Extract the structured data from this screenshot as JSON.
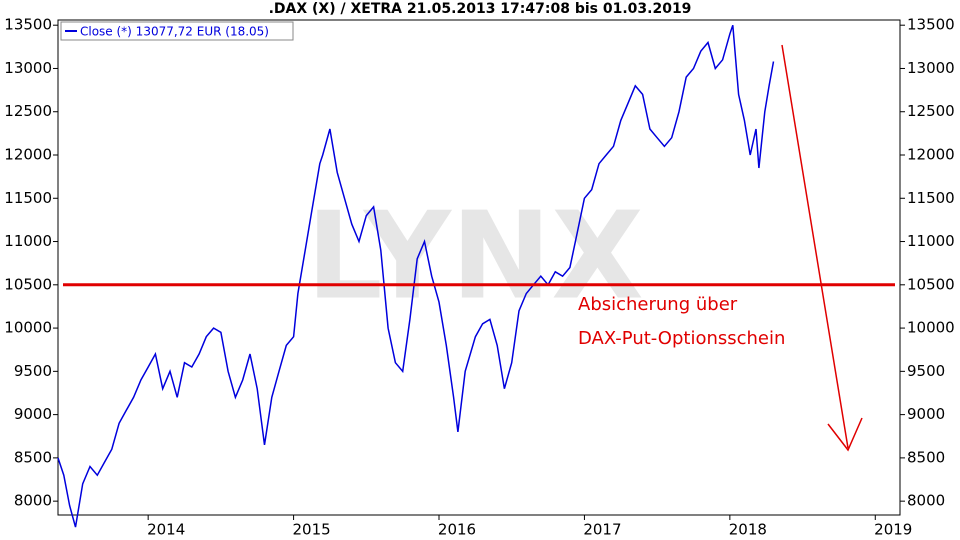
{
  "chart_data": {
    "type": "line",
    "title": ".DAX (X) / XETRA 21.05.2013 17:47:08 bis 01.03.2019",
    "watermark": "LYNX",
    "annotation": {
      "lines": [
        "Absicherung über",
        "DAX-Put-Optionsschein"
      ],
      "color": "#e00000"
    },
    "hline": {
      "value": 10500,
      "color": "#e00000"
    },
    "x": [
      2013.38,
      2013.42,
      2013.46,
      2013.5,
      2013.55,
      2013.6,
      2013.65,
      2013.7,
      2013.75,
      2013.8,
      2013.85,
      2013.9,
      2013.95,
      2014.0,
      2014.05,
      2014.1,
      2014.15,
      2014.2,
      2014.25,
      2014.3,
      2014.35,
      2014.4,
      2014.45,
      2014.5,
      2014.55,
      2014.6,
      2014.65,
      2014.7,
      2014.75,
      2014.8,
      2014.85,
      2014.9,
      2014.95,
      2015.0,
      2015.03,
      2015.08,
      2015.12,
      2015.18,
      2015.2,
      2015.25,
      2015.3,
      2015.35,
      2015.4,
      2015.45,
      2015.5,
      2015.55,
      2015.6,
      2015.65,
      2015.7,
      2015.75,
      2015.8,
      2015.85,
      2015.9,
      2015.95,
      2016.0,
      2016.05,
      2016.1,
      2016.13,
      2016.18,
      2016.25,
      2016.3,
      2016.35,
      2016.4,
      2016.45,
      2016.5,
      2016.55,
      2016.6,
      2016.65,
      2016.7,
      2016.75,
      2016.8,
      2016.85,
      2016.9,
      2016.95,
      2017.0,
      2017.05,
      2017.1,
      2017.15,
      2017.2,
      2017.25,
      2017.3,
      2017.35,
      2017.4,
      2017.45,
      2017.5,
      2017.55,
      2017.6,
      2017.65,
      2017.7,
      2017.75,
      2017.8,
      2017.85,
      2017.9,
      2017.95,
      2018.0,
      2018.02,
      2018.06,
      2018.1,
      2018.14,
      2018.18,
      2018.2,
      2018.24,
      2018.27,
      2018.3
    ],
    "series": [
      {
        "name": "Close (*) 13077,72 EUR (18.05)",
        "color": "#0000dd",
        "values": [
          8500,
          8300,
          7950,
          7700,
          8200,
          8400,
          8300,
          8450,
          8600,
          8900,
          9050,
          9200,
          9400,
          9550,
          9700,
          9300,
          9500,
          9200,
          9600,
          9550,
          9700,
          9900,
          10000,
          9950,
          9500,
          9200,
          9400,
          9700,
          9300,
          8650,
          9200,
          9500,
          9800,
          9900,
          10400,
          10900,
          11300,
          11900,
          12000,
          12300,
          11800,
          11500,
          11200,
          11000,
          11300,
          11400,
          10900,
          10000,
          9600,
          9500,
          10100,
          10800,
          11000,
          10600,
          10300,
          9800,
          9200,
          8800,
          9500,
          9900,
          10050,
          10100,
          9800,
          9300,
          9600,
          10200,
          10400,
          10500,
          10600,
          10500,
          10650,
          10600,
          10700,
          11100,
          11500,
          11600,
          11900,
          12000,
          12100,
          12400,
          12600,
          12800,
          12700,
          12300,
          12200,
          12100,
          12200,
          12500,
          12900,
          13000,
          13200,
          13300,
          13000,
          13100,
          13400,
          13500,
          12700,
          12400,
          12000,
          12300,
          11850,
          12500,
          12800,
          13080
        ]
      }
    ],
    "xlim": [
      2013.38,
      2019.17
    ],
    "xticks": [
      2014,
      2015,
      2016,
      2017,
      2018,
      2019
    ],
    "ylim": [
      7840,
      13560
    ],
    "yticks": [
      8000,
      8500,
      9000,
      9500,
      10000,
      10500,
      11000,
      11500,
      12000,
      12500,
      13000,
      13500
    ],
    "y2lim": [
      7840,
      13560
    ],
    "y2ticks": [
      8000,
      8500,
      9000,
      9500,
      10000,
      10500,
      11000,
      11500,
      12000,
      12500,
      13000,
      13500
    ]
  }
}
